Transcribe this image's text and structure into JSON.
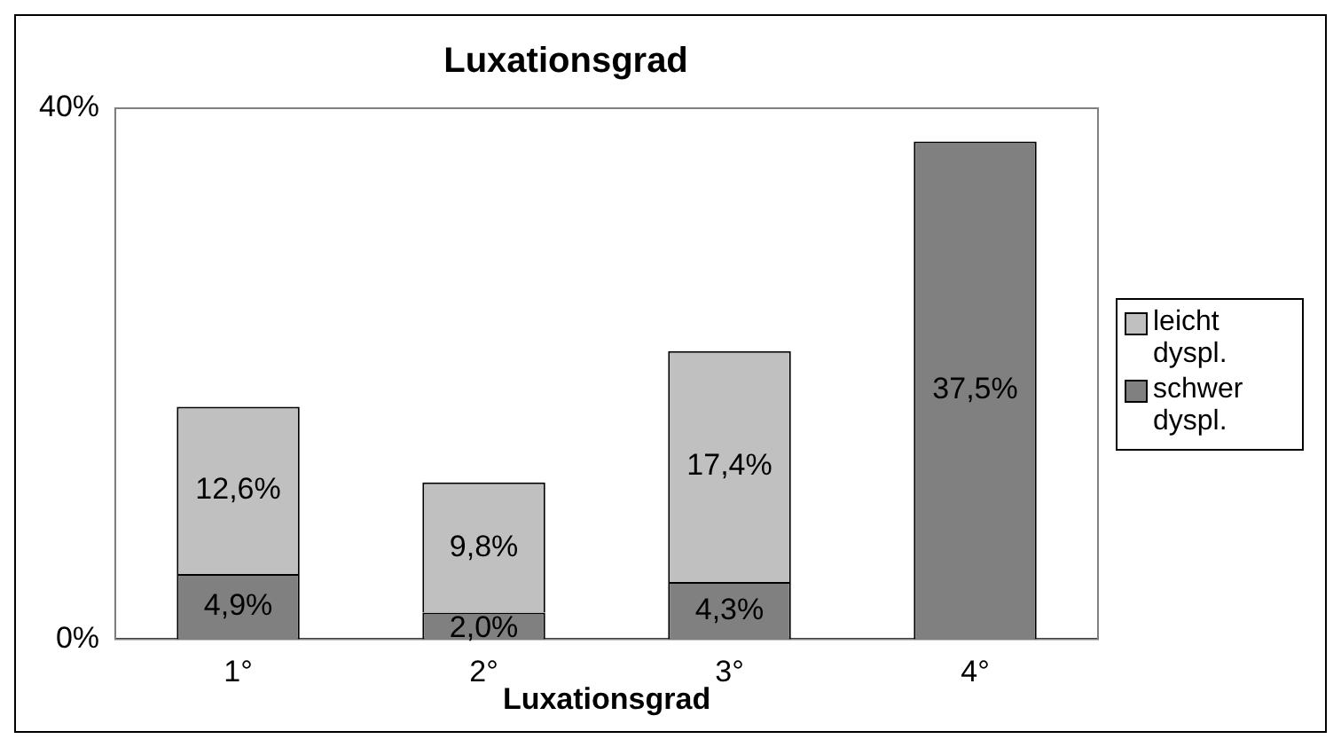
{
  "chart_data": {
    "type": "bar",
    "title": "Luxationsgrad",
    "xlabel": "Luxationsgrad",
    "categories": [
      "1°",
      "2°",
      "3°",
      "4°"
    ],
    "stacked": true,
    "series": [
      {
        "name": "schwer dyspl.",
        "color": "#808080",
        "values": [
          4.9,
          2.0,
          4.3,
          37.5
        ],
        "value_labels": [
          "4,9%",
          "2,0%",
          "4,3%",
          "37,5%"
        ]
      },
      {
        "name": "leicht dyspl.",
        "color": "#c0c0c0",
        "values": [
          12.6,
          9.8,
          17.4,
          null
        ],
        "value_labels": [
          "12,6%",
          "9,8%",
          "17,4%",
          null
        ]
      }
    ],
    "ylim": [
      0,
      40
    ],
    "yticks": [
      {
        "value": 0,
        "label": "0%"
      },
      {
        "value": 40,
        "label": "40%"
      }
    ],
    "grid": false,
    "legend": "right"
  }
}
